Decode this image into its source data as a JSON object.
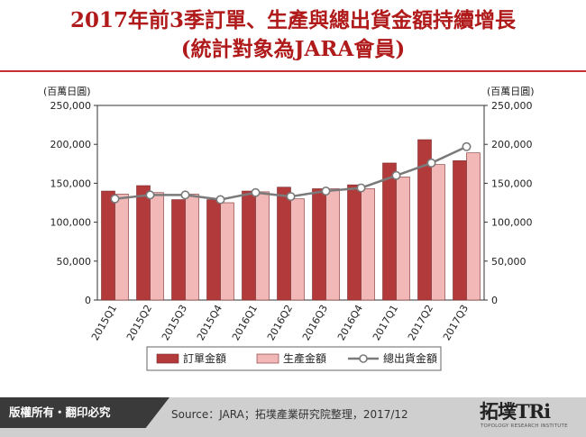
{
  "header": {
    "title_line1": "2017年前3季訂單、生產與總出貨金額持續增長",
    "title_line2": "(統計對象為JARA會員)"
  },
  "chart_data": {
    "type": "bar",
    "categories": [
      "2015Q1",
      "2015Q2",
      "2015Q3",
      "2015Q4",
      "2016Q1",
      "2016Q2",
      "2016Q3",
      "2016Q4",
      "2017Q1",
      "2017Q2",
      "2017Q3"
    ],
    "series": [
      {
        "name": "訂單金額",
        "kind": "bar",
        "axis": "left",
        "color": "#b23a3a",
        "values": [
          140000,
          147000,
          129000,
          129000,
          140000,
          145000,
          143000,
          148000,
          176000,
          206000,
          179000
        ]
      },
      {
        "name": "生產金額",
        "kind": "bar",
        "axis": "left",
        "color": "#f2b8b8",
        "values": [
          136000,
          138000,
          136000,
          125000,
          139000,
          130000,
          143000,
          143000,
          158000,
          174000,
          189000
        ]
      },
      {
        "name": "總出貨金額",
        "kind": "line",
        "axis": "right",
        "color": "#7a7a7a",
        "values": [
          130000,
          135000,
          135000,
          129000,
          138000,
          133000,
          140000,
          144000,
          160000,
          176000,
          197000
        ]
      }
    ],
    "y_left": {
      "label": "(百萬日圓)",
      "ylim": [
        0,
        250000
      ],
      "ticks": [
        "0",
        "50,000",
        "100,000",
        "150,000",
        "200,000",
        "250,000"
      ]
    },
    "y_right": {
      "label": "(百萬日圓)",
      "ylim": [
        0,
        250000
      ],
      "ticks": [
        "0",
        "50,000",
        "100,000",
        "150,000",
        "200,000",
        "250,000"
      ]
    },
    "grid": false,
    "legend_position": "bottom"
  },
  "footer": {
    "rights": "版權所有・翻印必究",
    "source": "Source：JARA；拓墣產業研究院整理，2017/12",
    "logo_text": "拓墣TRi",
    "logo_sub": "TOPOLOGY RESEARCH INSTITUTE"
  }
}
